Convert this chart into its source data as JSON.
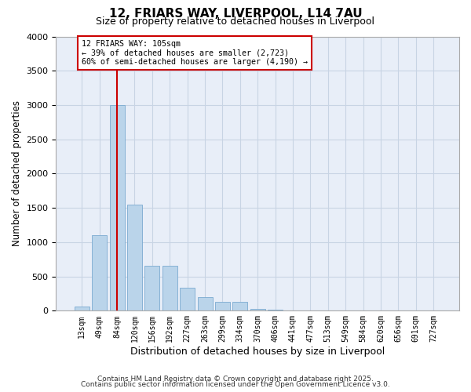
{
  "title": "12, FRIARS WAY, LIVERPOOL, L14 7AU",
  "subtitle": "Size of property relative to detached houses in Liverpool",
  "xlabel": "Distribution of detached houses by size in Liverpool",
  "ylabel": "Number of detached properties",
  "categories": [
    "13sqm",
    "49sqm",
    "84sqm",
    "120sqm",
    "156sqm",
    "192sqm",
    "227sqm",
    "263sqm",
    "299sqm",
    "334sqm",
    "370sqm",
    "406sqm",
    "441sqm",
    "477sqm",
    "513sqm",
    "549sqm",
    "584sqm",
    "620sqm",
    "656sqm",
    "691sqm",
    "727sqm"
  ],
  "values": [
    60,
    1100,
    3000,
    1550,
    650,
    650,
    340,
    200,
    130,
    130,
    30,
    20,
    0,
    0,
    0,
    0,
    0,
    0,
    0,
    0,
    0
  ],
  "bar_color": "#bad4ea",
  "bar_edge_color": "#7aaad0",
  "grid_color": "#c8d4e4",
  "background_color": "#e8eef8",
  "vline_x": 2,
  "vline_color": "#cc0000",
  "annotation_text": "12 FRIARS WAY: 105sqm\n← 39% of detached houses are smaller (2,723)\n60% of semi-detached houses are larger (4,190) →",
  "annotation_box_color": "#cc0000",
  "ylim": [
    0,
    4000
  ],
  "yticks": [
    0,
    500,
    1000,
    1500,
    2000,
    2500,
    3000,
    3500,
    4000
  ],
  "footer_line1": "Contains HM Land Registry data © Crown copyright and database right 2025.",
  "footer_line2": "Contains public sector information licensed under the Open Government Licence v3.0."
}
